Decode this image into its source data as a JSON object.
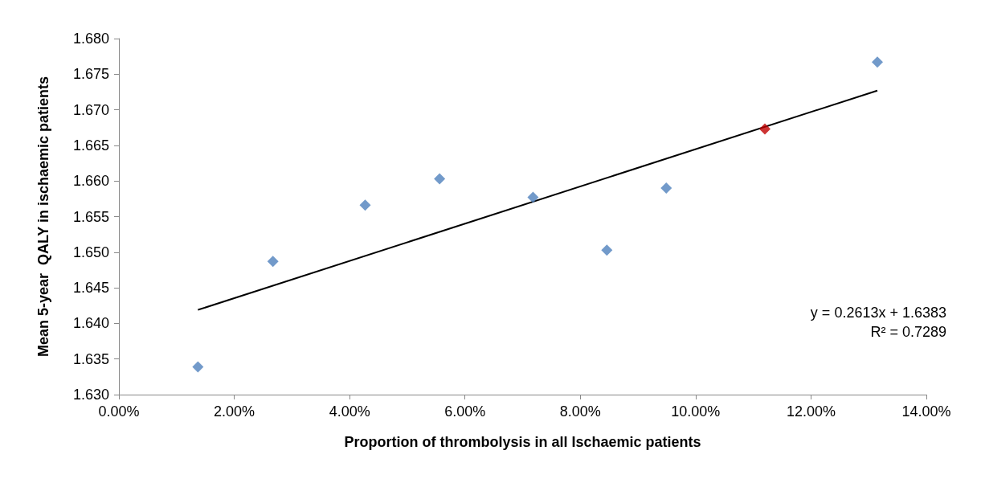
{
  "chart_data": {
    "type": "scatter",
    "xlabel": "Proportion of thrombolysis in all Ischaemic patients",
    "ylabel": "Mean 5-year  QALY in ischaemic patients",
    "series": [
      {
        "marker": "diamond",
        "color": "#4f81bd",
        "x": [
          0.0137,
          0.0267,
          0.0427,
          0.0556,
          0.0718,
          0.0846,
          0.0949,
          0.112,
          0.1315
        ],
        "values": [
          1.6339,
          1.6487,
          1.6566,
          1.6603,
          1.6577,
          1.6503,
          1.659,
          1.6673,
          1.6767
        ],
        "colors": [
          "#4f81bd",
          "#4f81bd",
          "#4f81bd",
          "#4f81bd",
          "#4f81bd",
          "#4f81bd",
          "#4f81bd",
          "#c00000",
          "#4f81bd"
        ]
      },
      {
        "type": "line",
        "color": "#000000",
        "x": [
          0.0137,
          0.1315
        ],
        "values": [
          1.6419,
          1.6727
        ]
      }
    ],
    "xlim": [
      0,
      0.14
    ],
    "xticks": [
      {
        "value": 0,
        "label": "0.00%"
      },
      {
        "value": 0.02,
        "label": "2.00%"
      },
      {
        "value": 0.04,
        "label": "4.00%"
      },
      {
        "value": 0.06,
        "label": "6.00%"
      },
      {
        "value": 0.08,
        "label": "8.00%"
      },
      {
        "value": 0.1,
        "label": "10.00%"
      },
      {
        "value": 0.12,
        "label": "12.00%"
      },
      {
        "value": 0.14,
        "label": "14.00%"
      }
    ],
    "ylim": [
      1.63,
      1.68
    ],
    "yticks": [
      {
        "value": 1.63,
        "label": "1.630"
      },
      {
        "value": 1.635,
        "label": "1.635"
      },
      {
        "value": 1.64,
        "label": "1.640"
      },
      {
        "value": 1.645,
        "label": "1.645"
      },
      {
        "value": 1.65,
        "label": "1.650"
      },
      {
        "value": 1.655,
        "label": "1.655"
      },
      {
        "value": 1.66,
        "label": "1.660"
      },
      {
        "value": 1.665,
        "label": "1.665"
      },
      {
        "value": 1.67,
        "label": "1.670"
      },
      {
        "value": 1.675,
        "label": "1.675"
      },
      {
        "value": 1.68,
        "label": "1.680"
      }
    ],
    "annotations": [
      "y = 0.2613x + 1.6383",
      "R² = 0.7289"
    ],
    "grid": false,
    "line_style": "solid"
  }
}
